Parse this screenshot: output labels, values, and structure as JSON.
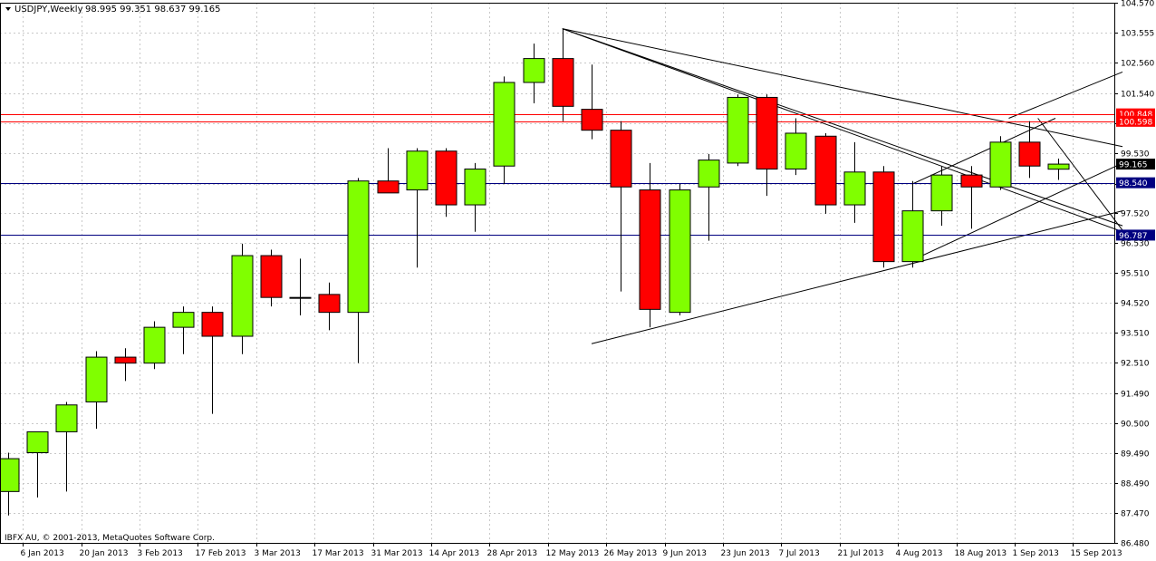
{
  "header": {
    "title": "USDJPY,Weekly",
    "ohlc": "98.995 99.351 98.637 99.165",
    "copyright": "IBFX AU, © 2001-2013, MetaQuotes Software Corp."
  },
  "colors": {
    "bull": "#80ff00",
    "bear": "#ff0000",
    "outline": "#000000",
    "grid": "#c8c8c8",
    "resistance_line": "#ff0000",
    "support_line": "#000080",
    "price_badge": "#000000"
  },
  "chart_data": {
    "type": "candlestick",
    "symbol": "USDJPY",
    "timeframe": "Weekly",
    "ylim": [
      86.48,
      104.57
    ],
    "y_ticks": [
      "104.570",
      "103.555",
      "102.560",
      "101.540",
      "100.530",
      "99.530",
      "98.510",
      "97.520",
      "96.530",
      "95.510",
      "94.520",
      "93.510",
      "92.510",
      "91.490",
      "90.500",
      "89.490",
      "88.490",
      "87.470",
      "86.480"
    ],
    "x_tick_labels": [
      "6 Jan 2013",
      "20 Jan 2013",
      "3 Feb 2013",
      "17 Feb 2013",
      "3 Mar 2013",
      "17 Mar 2013",
      "31 Mar 2013",
      "14 Apr 2013",
      "28 Apr 2013",
      "12 May 2013",
      "26 May 2013",
      "9 Jun 2013",
      "23 Jun 2013",
      "7 Jul 2013",
      "21 Jul 2013",
      "4 Aug 2013",
      "18 Aug 2013",
      "1 Sep 2013",
      "15 Sep 2013"
    ],
    "candles": [
      {
        "o": 88.2,
        "h": 89.5,
        "l": 87.4,
        "c": 89.3
      },
      {
        "o": 89.5,
        "h": 90.1,
        "l": 88.0,
        "c": 90.2
      },
      {
        "o": 90.2,
        "h": 91.2,
        "l": 88.2,
        "c": 91.1
      },
      {
        "o": 91.2,
        "h": 92.9,
        "l": 90.3,
        "c": 92.7
      },
      {
        "o": 92.7,
        "h": 93.0,
        "l": 91.9,
        "c": 92.5
      },
      {
        "o": 92.5,
        "h": 93.9,
        "l": 92.3,
        "c": 93.7
      },
      {
        "o": 93.7,
        "h": 94.4,
        "l": 92.8,
        "c": 94.2
      },
      {
        "o": 94.2,
        "h": 94.4,
        "l": 90.8,
        "c": 93.4
      },
      {
        "o": 93.4,
        "h": 96.5,
        "l": 92.8,
        "c": 96.1
      },
      {
        "o": 96.1,
        "h": 96.3,
        "l": 94.4,
        "c": 94.7
      },
      {
        "o": 94.7,
        "h": 96.0,
        "l": 94.1,
        "c": 94.7
      },
      {
        "o": 94.8,
        "h": 95.2,
        "l": 93.6,
        "c": 94.2
      },
      {
        "o": 94.2,
        "h": 98.7,
        "l": 92.5,
        "c": 98.6
      },
      {
        "o": 98.6,
        "h": 99.7,
        "l": 98.2,
        "c": 98.2
      },
      {
        "o": 98.3,
        "h": 99.7,
        "l": 95.7,
        "c": 99.6
      },
      {
        "o": 99.6,
        "h": 99.7,
        "l": 97.4,
        "c": 97.8
      },
      {
        "o": 97.8,
        "h": 99.2,
        "l": 96.9,
        "c": 99.0
      },
      {
        "o": 99.1,
        "h": 102.1,
        "l": 98.5,
        "c": 101.9
      },
      {
        "o": 101.9,
        "h": 103.2,
        "l": 101.2,
        "c": 102.7
      },
      {
        "o": 102.7,
        "h": 103.7,
        "l": 100.6,
        "c": 101.1
      },
      {
        "o": 101.0,
        "h": 102.5,
        "l": 100.0,
        "c": 100.3
      },
      {
        "o": 100.3,
        "h": 100.6,
        "l": 94.9,
        "c": 98.4
      },
      {
        "o": 98.3,
        "h": 99.2,
        "l": 93.7,
        "c": 94.3
      },
      {
        "o": 94.2,
        "h": 98.5,
        "l": 94.1,
        "c": 98.3
      },
      {
        "o": 98.4,
        "h": 99.5,
        "l": 96.6,
        "c": 99.3
      },
      {
        "o": 99.2,
        "h": 101.5,
        "l": 99.1,
        "c": 101.4
      },
      {
        "o": 101.4,
        "h": 101.5,
        "l": 98.1,
        "c": 99.0
      },
      {
        "o": 99.0,
        "h": 100.7,
        "l": 98.8,
        "c": 100.2
      },
      {
        "o": 100.1,
        "h": 100.2,
        "l": 97.5,
        "c": 97.8
      },
      {
        "o": 97.8,
        "h": 99.9,
        "l": 97.2,
        "c": 98.9
      },
      {
        "o": 98.9,
        "h": 99.1,
        "l": 95.7,
        "c": 95.9
      },
      {
        "o": 95.9,
        "h": 98.6,
        "l": 95.7,
        "c": 97.6
      },
      {
        "o": 97.6,
        "h": 99.1,
        "l": 97.1,
        "c": 98.8
      },
      {
        "o": 98.8,
        "h": 99.1,
        "l": 97.0,
        "c": 98.4
      },
      {
        "o": 98.4,
        "h": 100.1,
        "l": 98.3,
        "c": 99.9
      },
      {
        "o": 99.9,
        "h": 100.6,
        "l": 98.7,
        "c": 99.1
      },
      {
        "o": 98.995,
        "h": 99.351,
        "l": 98.637,
        "c": 99.165
      }
    ],
    "horizontal_lines": [
      {
        "price": 100.848,
        "label": "100.848",
        "color": "#ff0000"
      },
      {
        "price": 100.598,
        "label": "100.598",
        "color": "#ff0000"
      },
      {
        "price": 98.54,
        "label": "98.540",
        "color": "#000080"
      },
      {
        "price": 96.787,
        "label": "96.787",
        "color": "#000080"
      }
    ],
    "current_price": {
      "price": 99.165,
      "label": "99.165"
    },
    "trendlines": [
      {
        "i1": 19,
        "p1": 103.7,
        "i2": 38.2,
        "p2": 99.75
      },
      {
        "i1": 19,
        "p1": 103.7,
        "i2": 38.2,
        "p2": 96.9
      },
      {
        "i1": 19,
        "p1": 103.7,
        "i2": 38.2,
        "p2": 97.1
      },
      {
        "i1": 20,
        "p1": 93.15,
        "i2": 38.2,
        "p2": 97.6
      },
      {
        "i1": 31,
        "p1": 95.95,
        "i2": 38.2,
        "p2": 99.2
      },
      {
        "i1": 31,
        "p1": 98.5,
        "i2": 35.9,
        "p2": 100.7
      },
      {
        "i1": 34.3,
        "p1": 100.7,
        "i2": 38.2,
        "p2": 102.25
      },
      {
        "i1": 35.3,
        "p1": 100.7,
        "i2": 38.2,
        "p2": 96.95
      }
    ]
  }
}
